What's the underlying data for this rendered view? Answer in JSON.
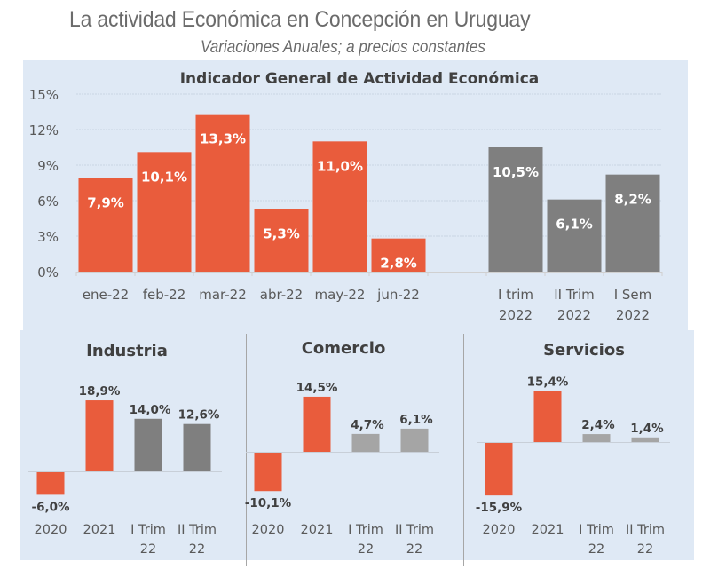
{
  "header": {
    "title": "La actividad Económica en Concepción en Uruguay",
    "subtitle": "Variaciones Anuales; a precios constantes"
  },
  "colors": {
    "orange": "#e95c3c",
    "dark_gray": "#7f7f7f",
    "light_gray": "#a5a5a5",
    "panel_bg": "#dfe9f5"
  },
  "chart_data": [
    {
      "type": "bar",
      "title": "Indicador General de Actividad Económica",
      "xlabel": "",
      "ylabel": "",
      "ylim": [
        0,
        15
      ],
      "yticks": [
        "0%",
        "3%",
        "6%",
        "9%",
        "12%",
        "15%"
      ],
      "ytick_values": [
        0,
        3,
        6,
        9,
        12,
        15
      ],
      "grid": true,
      "categories": [
        "ene-22",
        "feb-22",
        "mar-22",
        "abr-22",
        "may-22",
        "jun-22",
        "",
        "I trim 2022",
        "II Trim 2022",
        "I Sem 2022"
      ],
      "category_lines": [
        [
          "ene-22"
        ],
        [
          "feb-22"
        ],
        [
          "mar-22"
        ],
        [
          "abr-22"
        ],
        [
          "may-22"
        ],
        [
          "jun-22"
        ],
        [
          ""
        ],
        [
          "I trim",
          "2022"
        ],
        [
          "II Trim",
          "2022"
        ],
        [
          "I Sem",
          "2022"
        ]
      ],
      "values": [
        7.9,
        10.1,
        13.3,
        5.3,
        11.0,
        2.8,
        null,
        10.5,
        6.1,
        8.2
      ],
      "labels": [
        "7,9%",
        "10,1%",
        "13,3%",
        "5,3%",
        "11,0%",
        "2,8%",
        "",
        "10,5%",
        "6,1%",
        "8,2%"
      ],
      "bar_colors": [
        "orange",
        "orange",
        "orange",
        "orange",
        "orange",
        "orange",
        null,
        "dark_gray",
        "dark_gray",
        "dark_gray"
      ]
    },
    {
      "type": "bar",
      "title": "Industria",
      "categories": [
        "2020",
        "2021",
        "I Trim 22",
        "II Trim 22"
      ],
      "category_lines": [
        [
          "2020"
        ],
        [
          "2021"
        ],
        [
          "I Trim",
          "22"
        ],
        [
          "II Trim",
          "22"
        ]
      ],
      "values": [
        -6.0,
        18.9,
        14.0,
        12.6
      ],
      "labels": [
        "-6,0%",
        "18,9%",
        "14,0%",
        "12,6%"
      ],
      "bar_colors": [
        "orange",
        "orange",
        "dark_gray",
        "dark_gray"
      ]
    },
    {
      "type": "bar",
      "title": "Comercio",
      "categories": [
        "2020",
        "2021",
        "I Trim 22",
        "II Trim 22"
      ],
      "category_lines": [
        [
          "2020"
        ],
        [
          "2021"
        ],
        [
          "I Trim",
          "22"
        ],
        [
          "II Trim",
          "22"
        ]
      ],
      "values": [
        -10.1,
        14.5,
        4.7,
        6.1
      ],
      "labels": [
        "-10,1%",
        "14,5%",
        "4,7%",
        "6,1%"
      ],
      "bar_colors": [
        "orange",
        "orange",
        "light_gray",
        "light_gray"
      ]
    },
    {
      "type": "bar",
      "title": "Servicios",
      "categories": [
        "2020",
        "2021",
        "I Trim 22",
        "II Trim 22"
      ],
      "category_lines": [
        [
          "2020"
        ],
        [
          "2021"
        ],
        [
          "I Trim",
          "22"
        ],
        [
          "II Trim",
          "22"
        ]
      ],
      "values": [
        -15.9,
        15.4,
        2.4,
        1.4
      ],
      "labels": [
        "-15,9%",
        "15,4%",
        "2,4%",
        "1,4%"
      ],
      "bar_colors": [
        "orange",
        "orange",
        "light_gray",
        "light_gray"
      ]
    }
  ]
}
